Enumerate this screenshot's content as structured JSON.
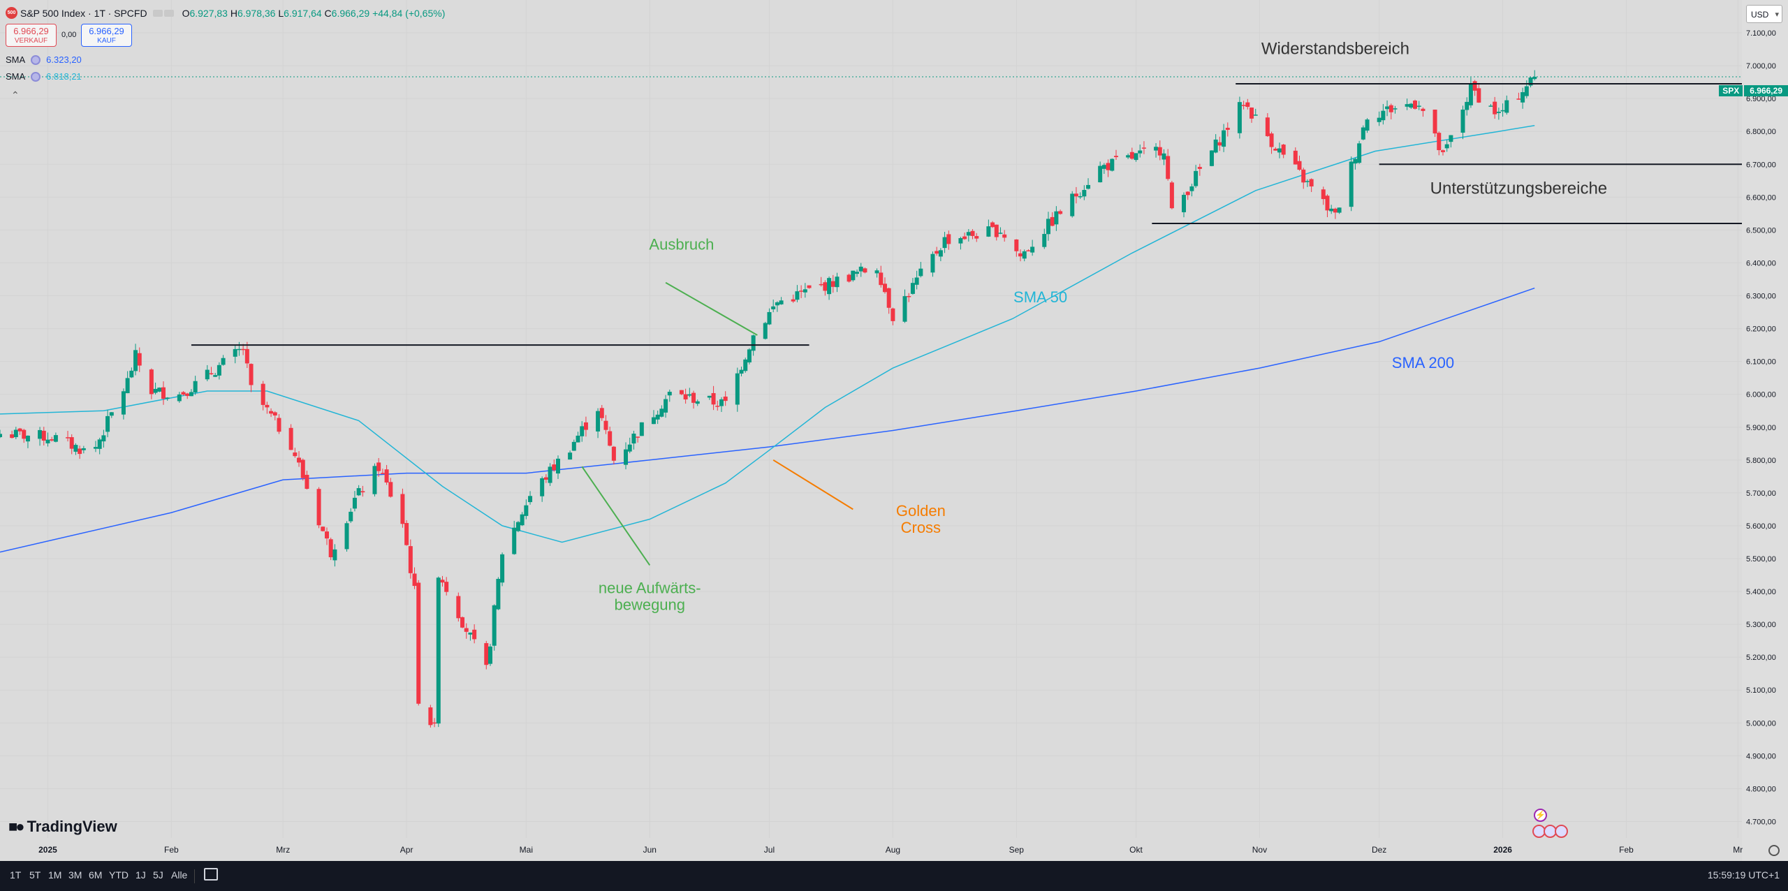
{
  "header": {
    "symbol_badge": "500",
    "title": "S&P 500 Index · 1T · SPCFD",
    "open_label": "O",
    "open": "6.927,83",
    "high_label": "H",
    "high": "6.978,36",
    "low_label": "L",
    "low": "6.917,64",
    "close_label": "C",
    "close": "6.966,29",
    "change": "+44,84 (+0,65%)"
  },
  "trade": {
    "sell_price": "6.966,29",
    "sell_label": "VERKAUF",
    "spread": "0,00",
    "buy_price": "6.966,29",
    "buy_label": "KAUF"
  },
  "indicators": [
    {
      "name": "SMA",
      "value": "6.323,20",
      "color": "#2962ff"
    },
    {
      "name": "SMA",
      "value": "6.818,21",
      "color": "#22b5d6"
    }
  ],
  "currency": "USD",
  "last_price_tag": {
    "symbol": "SPX",
    "value": "6.966,29"
  },
  "brand": "TradingView",
  "timeframes": [
    "1T",
    "5T",
    "1M",
    "3M",
    "6M",
    "YTD",
    "1J",
    "5J",
    "Alle"
  ],
  "clock": "15:59:19 UTC+1",
  "colors": {
    "up": "#089981",
    "down": "#f23645",
    "sma50": "#22b5d6",
    "sma200": "#2962ff",
    "green_note": "#4caf50",
    "orange_note": "#f57c00"
  },
  "chart_data": {
    "type": "candlestick",
    "ylim": [
      4650,
      7200
    ],
    "y_ticks": [
      "4.700,00",
      "4.800,00",
      "4.900,00",
      "5.000,00",
      "5.100,00",
      "5.200,00",
      "5.300,00",
      "5.400,00",
      "5.500,00",
      "5.600,00",
      "5.700,00",
      "5.800,00",
      "5.900,00",
      "6.000,00",
      "6.100,00",
      "6.200,00",
      "6.300,00",
      "6.400,00",
      "6.500,00",
      "6.600,00",
      "6.700,00",
      "6.800,00",
      "6.900,00",
      "7.000,00",
      "7.100,00"
    ],
    "y_tick_values": [
      4700,
      4800,
      4900,
      5000,
      5100,
      5200,
      5300,
      5400,
      5500,
      5600,
      5700,
      5800,
      5900,
      6000,
      6100,
      6200,
      6300,
      6400,
      6500,
      6600,
      6700,
      6800,
      6900,
      7000,
      7100
    ],
    "x_labels": [
      {
        "label": "2025",
        "date": "2025-01-01"
      },
      {
        "label": "Feb",
        "date": "2025-02-01"
      },
      {
        "label": "Mrz",
        "date": "2025-03-01"
      },
      {
        "label": "Apr",
        "date": "2025-04-01"
      },
      {
        "label": "Mai",
        "date": "2025-05-01"
      },
      {
        "label": "Jun",
        "date": "2025-06-01"
      },
      {
        "label": "Jul",
        "date": "2025-07-01"
      },
      {
        "label": "Aug",
        "date": "2025-08-01"
      },
      {
        "label": "Sep",
        "date": "2025-09-01"
      },
      {
        "label": "Okt",
        "date": "2025-10-01"
      },
      {
        "label": "Nov",
        "date": "2025-11-01"
      },
      {
        "label": "Dez",
        "date": "2025-12-01"
      },
      {
        "label": "2026",
        "date": "2026-01-01"
      },
      {
        "label": "Feb",
        "date": "2026-02-01"
      },
      {
        "label": "Mr",
        "date": "2026-03-01"
      }
    ],
    "x_range": [
      "2024-12-20",
      "2026-03-02"
    ],
    "closes": [
      {
        "date": "2024-12-20",
        "value": 5880
      },
      {
        "date": "2025-01-02",
        "value": 5870
      },
      {
        "date": "2025-01-10",
        "value": 5830
      },
      {
        "date": "2025-01-13",
        "value": 5840
      },
      {
        "date": "2025-01-21",
        "value": 6040
      },
      {
        "date": "2025-01-23",
        "value": 6115
      },
      {
        "date": "2025-01-27",
        "value": 6010
      },
      {
        "date": "2025-02-03",
        "value": 6000
      },
      {
        "date": "2025-02-07",
        "value": 6030
      },
      {
        "date": "2025-02-19",
        "value": 6140
      },
      {
        "date": "2025-02-21",
        "value": 6015
      },
      {
        "date": "2025-03-03",
        "value": 5850
      },
      {
        "date": "2025-03-10",
        "value": 5615
      },
      {
        "date": "2025-03-13",
        "value": 5520
      },
      {
        "date": "2025-03-19",
        "value": 5680
      },
      {
        "date": "2025-03-25",
        "value": 5780
      },
      {
        "date": "2025-03-31",
        "value": 5610
      },
      {
        "date": "2025-04-03",
        "value": 5400
      },
      {
        "date": "2025-04-04",
        "value": 5075
      },
      {
        "date": "2025-04-08",
        "value": 4980
      },
      {
        "date": "2025-04-09",
        "value": 5460
      },
      {
        "date": "2025-04-21",
        "value": 5160
      },
      {
        "date": "2025-04-25",
        "value": 5520
      },
      {
        "date": "2025-05-02",
        "value": 5690
      },
      {
        "date": "2025-05-12",
        "value": 5840
      },
      {
        "date": "2025-05-19",
        "value": 5960
      },
      {
        "date": "2025-05-23",
        "value": 5800
      },
      {
        "date": "2025-06-06",
        "value": 6000
      },
      {
        "date": "2025-06-20",
        "value": 5970
      },
      {
        "date": "2025-06-27",
        "value": 6180
      },
      {
        "date": "2025-07-03",
        "value": 6280
      },
      {
        "date": "2025-07-28",
        "value": 6390
      },
      {
        "date": "2025-08-01",
        "value": 6240
      },
      {
        "date": "2025-08-14",
        "value": 6470
      },
      {
        "date": "2025-08-28",
        "value": 6500
      },
      {
        "date": "2025-09-02",
        "value": 6420
      },
      {
        "date": "2025-09-22",
        "value": 6690
      },
      {
        "date": "2025-10-08",
        "value": 6750
      },
      {
        "date": "2025-10-10",
        "value": 6550
      },
      {
        "date": "2025-10-28",
        "value": 6890
      },
      {
        "date": "2025-11-04",
        "value": 6770
      },
      {
        "date": "2025-11-20",
        "value": 6540
      },
      {
        "date": "2025-11-28",
        "value": 6850
      },
      {
        "date": "2025-12-11",
        "value": 6890
      },
      {
        "date": "2025-12-17",
        "value": 6720
      },
      {
        "date": "2025-12-24",
        "value": 6930
      },
      {
        "date": "2025-12-31",
        "value": 6850
      },
      {
        "date": "2026-01-09",
        "value": 6966.29
      }
    ],
    "sma50": [
      {
        "date": "2024-12-20",
        "value": 5940
      },
      {
        "date": "2025-01-15",
        "value": 5950
      },
      {
        "date": "2025-02-10",
        "value": 6010
      },
      {
        "date": "2025-02-25",
        "value": 6010
      },
      {
        "date": "2025-03-20",
        "value": 5920
      },
      {
        "date": "2025-04-10",
        "value": 5720
      },
      {
        "date": "2025-04-25",
        "value": 5600
      },
      {
        "date": "2025-05-10",
        "value": 5550
      },
      {
        "date": "2025-06-01",
        "value": 5620
      },
      {
        "date": "2025-06-20",
        "value": 5730
      },
      {
        "date": "2025-07-01",
        "value": 5830
      },
      {
        "date": "2025-07-15",
        "value": 5960
      },
      {
        "date": "2025-08-01",
        "value": 6080
      },
      {
        "date": "2025-08-31",
        "value": 6230
      },
      {
        "date": "2025-09-30",
        "value": 6430
      },
      {
        "date": "2025-10-31",
        "value": 6620
      },
      {
        "date": "2025-11-30",
        "value": 6740
      },
      {
        "date": "2025-12-31",
        "value": 6800
      },
      {
        "date": "2026-01-09",
        "value": 6818.21
      }
    ],
    "sma200": [
      {
        "date": "2024-12-20",
        "value": 5520
      },
      {
        "date": "2025-02-01",
        "value": 5640
      },
      {
        "date": "2025-03-01",
        "value": 5740
      },
      {
        "date": "2025-04-01",
        "value": 5760
      },
      {
        "date": "2025-05-01",
        "value": 5760
      },
      {
        "date": "2025-06-01",
        "value": 5800
      },
      {
        "date": "2025-07-01",
        "value": 5840
      },
      {
        "date": "2025-08-01",
        "value": 5890
      },
      {
        "date": "2025-09-01",
        "value": 5950
      },
      {
        "date": "2025-10-01",
        "value": 6010
      },
      {
        "date": "2025-11-01",
        "value": 6080
      },
      {
        "date": "2025-12-01",
        "value": 6160
      },
      {
        "date": "2026-01-09",
        "value": 6323.2
      }
    ],
    "levels": [
      {
        "name": "Widerstandsbereich",
        "price": 6945,
        "from": "2025-10-26",
        "to": "2026-03-02",
        "label_date": "2025-11-20",
        "label_price": 7035
      },
      {
        "name": "Unterstützungsbereiche",
        "price": 6700,
        "from": "2025-12-01",
        "to": "2026-03-02"
      },
      {
        "name": "Unterstützungsbereiche",
        "price": 6520,
        "from": "2025-10-05",
        "to": "2026-03-02",
        "label_date": "2026-01-05",
        "label_price": 6610
      },
      {
        "name": "",
        "price": 6150,
        "from": "2025-02-06",
        "to": "2025-07-11"
      }
    ],
    "annotations": [
      {
        "text": "Ausbruch",
        "color": "#4caf50",
        "date": "2025-06-09",
        "price": 6440,
        "arrow_from": [
          "2025-06-05",
          6340
        ],
        "arrow_to": [
          "2025-06-28",
          6180
        ]
      },
      {
        "text": "neue Aufwärts-",
        "text2": "bewegung",
        "color": "#4caf50",
        "date": "2025-06-01",
        "price": 5395,
        "arrow_from": [
          "2025-05-15",
          5780
        ],
        "arrow_to": [
          "2025-06-01",
          5480
        ]
      },
      {
        "text": "Golden",
        "text2": "Cross",
        "color": "#f57c00",
        "date": "2025-08-08",
        "price": 5630,
        "arrow_from": [
          "2025-07-02",
          5800
        ],
        "arrow_to": [
          "2025-07-22",
          5650
        ]
      },
      {
        "text": "SMA 50",
        "color": "#22b5d6",
        "date": "2025-09-07",
        "price": 6280
      },
      {
        "text": "SMA 200",
        "color": "#2962ff",
        "date": "2025-12-12",
        "price": 6080
      }
    ]
  }
}
